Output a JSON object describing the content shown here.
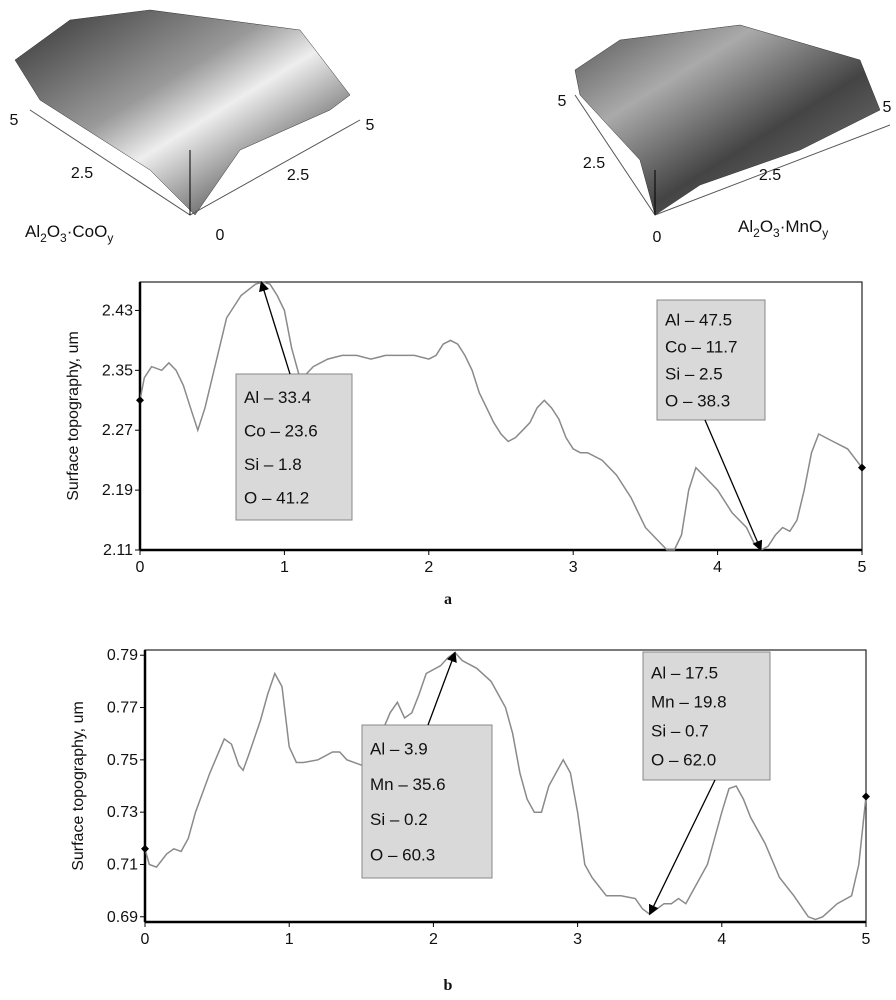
{
  "surface_images": [
    {
      "label": [
        {
          "text": "Al"
        },
        {
          "text": "2",
          "sub": true
        },
        {
          "text": "O"
        },
        {
          "text": "3",
          "sub": true
        },
        {
          "text": "·CoO"
        },
        {
          "text": "y",
          "sub": true
        }
      ],
      "axis_labels": [
        "5",
        "2.5",
        "0",
        "2.5",
        "5"
      ]
    },
    {
      "label": [
        {
          "text": "Al"
        },
        {
          "text": "2",
          "sub": true
        },
        {
          "text": "O"
        },
        {
          "text": "3",
          "sub": true
        },
        {
          "text": "·MnO"
        },
        {
          "text": "y",
          "sub": true
        }
      ],
      "axis_labels": [
        "5",
        "2.5",
        "0",
        "2.5",
        "5"
      ]
    }
  ],
  "chart_data": [
    {
      "type": "line",
      "y_label": "Surface topography, um",
      "caption": "a",
      "color": "#8a8a8a",
      "xlim": [
        0,
        5
      ],
      "xticks": [
        0,
        1,
        2,
        3,
        4,
        5
      ],
      "ylim": [
        2.11,
        2.468
      ],
      "yticks": [
        2.11,
        2.19,
        2.27,
        2.35,
        2.43
      ],
      "x": [
        0,
        0.03,
        0.08,
        0.15,
        0.2,
        0.25,
        0.3,
        0.35,
        0.4,
        0.45,
        0.5,
        0.55,
        0.6,
        0.7,
        0.8,
        0.85,
        0.9,
        0.95,
        1.0,
        1.05,
        1.1,
        1.15,
        1.2,
        1.3,
        1.4,
        1.5,
        1.6,
        1.7,
        1.8,
        1.9,
        2.0,
        2.05,
        2.1,
        2.15,
        2.2,
        2.25,
        2.3,
        2.35,
        2.4,
        2.45,
        2.5,
        2.55,
        2.6,
        2.65,
        2.7,
        2.75,
        2.8,
        2.85,
        2.9,
        2.95,
        3.0,
        3.05,
        3.1,
        3.2,
        3.3,
        3.4,
        3.5,
        3.6,
        3.65,
        3.7,
        3.75,
        3.8,
        3.85,
        3.9,
        4.0,
        4.1,
        4.2,
        4.25,
        4.3,
        4.35,
        4.4,
        4.45,
        4.5,
        4.55,
        4.6,
        4.65,
        4.7,
        4.8,
        4.9,
        5.0
      ],
      "values": [
        2.31,
        2.34,
        2.355,
        2.35,
        2.36,
        2.35,
        2.33,
        2.3,
        2.27,
        2.3,
        2.34,
        2.38,
        2.42,
        2.45,
        2.465,
        2.468,
        2.465,
        2.45,
        2.43,
        2.38,
        2.345,
        2.345,
        2.355,
        2.365,
        2.37,
        2.37,
        2.365,
        2.37,
        2.37,
        2.37,
        2.365,
        2.37,
        2.385,
        2.39,
        2.385,
        2.37,
        2.35,
        2.32,
        2.3,
        2.28,
        2.265,
        2.255,
        2.26,
        2.27,
        2.28,
        2.3,
        2.31,
        2.3,
        2.285,
        2.26,
        2.245,
        2.24,
        2.24,
        2.23,
        2.21,
        2.18,
        2.14,
        2.12,
        2.11,
        2.11,
        2.13,
        2.19,
        2.22,
        2.21,
        2.19,
        2.16,
        2.14,
        2.12,
        2.11,
        2.115,
        2.13,
        2.14,
        2.135,
        2.15,
        2.19,
        2.24,
        2.265,
        2.255,
        2.245,
        2.22
      ],
      "annotations": [
        {
          "lines": [
            "Al – 33.4",
            "Co – 23.6",
            "Si – 1.8",
            "O – 41.2"
          ],
          "x": 0.84,
          "y": 2.468
        },
        {
          "lines": [
            "Al – 47.5",
            "Co – 11.7",
            "Si – 2.5",
            "O – 38.3"
          ],
          "x": 4.3,
          "y": 2.11
        }
      ]
    },
    {
      "type": "line",
      "y_label": "Surface topography, um",
      "caption": "b",
      "color": "#8a8a8a",
      "xlim": [
        0,
        5
      ],
      "xticks": [
        0,
        1,
        2,
        3,
        4,
        5
      ],
      "ylim": [
        0.688,
        0.792
      ],
      "yticks": [
        0.69,
        0.71,
        0.73,
        0.75,
        0.77,
        0.79
      ],
      "x": [
        0,
        0.03,
        0.08,
        0.15,
        0.2,
        0.25,
        0.3,
        0.35,
        0.45,
        0.55,
        0.6,
        0.65,
        0.68,
        0.72,
        0.8,
        0.85,
        0.9,
        0.95,
        1.0,
        1.05,
        1.1,
        1.2,
        1.3,
        1.35,
        1.4,
        1.5,
        1.55,
        1.6,
        1.7,
        1.75,
        1.8,
        1.85,
        1.9,
        1.95,
        2.05,
        2.1,
        2.15,
        2.2,
        2.3,
        2.4,
        2.5,
        2.55,
        2.6,
        2.65,
        2.7,
        2.75,
        2.8,
        2.9,
        2.95,
        3.0,
        3.05,
        3.1,
        3.2,
        3.3,
        3.4,
        3.45,
        3.5,
        3.55,
        3.6,
        3.65,
        3.7,
        3.75,
        3.8,
        3.9,
        4.0,
        4.05,
        4.1,
        4.15,
        4.2,
        4.3,
        4.4,
        4.5,
        4.6,
        4.65,
        4.7,
        4.8,
        4.9,
        4.95,
        5.0
      ],
      "values": [
        0.716,
        0.71,
        0.709,
        0.714,
        0.716,
        0.715,
        0.72,
        0.73,
        0.745,
        0.758,
        0.756,
        0.748,
        0.746,
        0.752,
        0.765,
        0.775,
        0.783,
        0.778,
        0.755,
        0.749,
        0.749,
        0.75,
        0.753,
        0.753,
        0.75,
        0.748,
        0.747,
        0.755,
        0.768,
        0.772,
        0.766,
        0.768,
        0.775,
        0.783,
        0.786,
        0.789,
        0.791,
        0.788,
        0.785,
        0.78,
        0.77,
        0.76,
        0.745,
        0.735,
        0.73,
        0.73,
        0.74,
        0.75,
        0.745,
        0.73,
        0.71,
        0.705,
        0.698,
        0.698,
        0.697,
        0.693,
        0.691,
        0.693,
        0.695,
        0.695,
        0.697,
        0.695,
        0.7,
        0.71,
        0.73,
        0.739,
        0.74,
        0.735,
        0.728,
        0.718,
        0.705,
        0.698,
        0.69,
        0.689,
        0.69,
        0.695,
        0.698,
        0.71,
        0.736
      ],
      "annotations": [
        {
          "lines": [
            "Al – 3.9",
            "Mn – 35.6",
            "Si – 0.2",
            "O – 60.3"
          ],
          "x": 2.15,
          "y": 0.791
        },
        {
          "lines": [
            "Al – 17.5",
            "Mn – 19.8",
            "Si – 0.7",
            "O – 62.0"
          ],
          "x": 3.5,
          "y": 0.691
        }
      ]
    }
  ]
}
